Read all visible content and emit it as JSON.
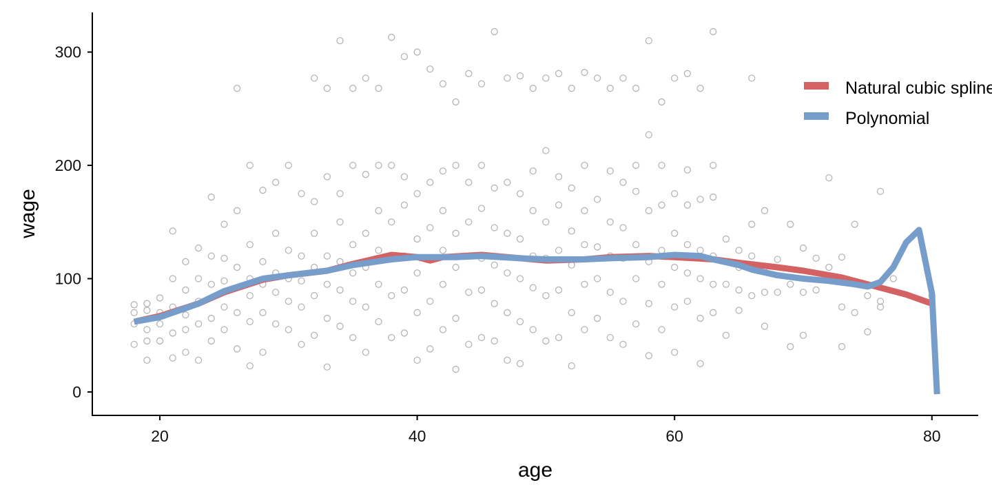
{
  "chart_data": {
    "type": "scatter",
    "title": "",
    "xlabel": "age",
    "ylabel": "wage",
    "xlim": [
      14.75,
      83.6
    ],
    "ylim": [
      -20.7,
      335
    ],
    "xticks": [
      20,
      40,
      60,
      80
    ],
    "yticks": [
      0,
      100,
      200,
      300
    ],
    "grid": false,
    "legend_position": "top-right",
    "colors": {
      "points": "#a8a8a8",
      "spline": "#d46262",
      "polynomial": "#779ecb",
      "axis": "#000000"
    },
    "points": [
      [
        26,
        268
      ],
      [
        32,
        277
      ],
      [
        33,
        268
      ],
      [
        34,
        310
      ],
      [
        35,
        268
      ],
      [
        36,
        277
      ],
      [
        37,
        268
      ],
      [
        38,
        313
      ],
      [
        39,
        296
      ],
      [
        40,
        300
      ],
      [
        41,
        285
      ],
      [
        42,
        272
      ],
      [
        43,
        256
      ],
      [
        44,
        281
      ],
      [
        45,
        272
      ],
      [
        46,
        318
      ],
      [
        47,
        277
      ],
      [
        48,
        279
      ],
      [
        49,
        268
      ],
      [
        50,
        277
      ],
      [
        51,
        281
      ],
      [
        52,
        268
      ],
      [
        53,
        282
      ],
      [
        54,
        277
      ],
      [
        55,
        268
      ],
      [
        56,
        277
      ],
      [
        57,
        268
      ],
      [
        58,
        310
      ],
      [
        59,
        256
      ],
      [
        60,
        277
      ],
      [
        61,
        281
      ],
      [
        62,
        268
      ],
      [
        63,
        318
      ],
      [
        66,
        277
      ],
      [
        18,
        42
      ],
      [
        18,
        60
      ],
      [
        18,
        70
      ],
      [
        18,
        77
      ],
      [
        19,
        28
      ],
      [
        19,
        45
      ],
      [
        19,
        55
      ],
      [
        19,
        72
      ],
      [
        19,
        78
      ],
      [
        20,
        45
      ],
      [
        20,
        60
      ],
      [
        20,
        70
      ],
      [
        20,
        83
      ],
      [
        21,
        30
      ],
      [
        21,
        52
      ],
      [
        21,
        75
      ],
      [
        21,
        100
      ],
      [
        21,
        142
      ],
      [
        22,
        35
      ],
      [
        22,
        55
      ],
      [
        22,
        68
      ],
      [
        22,
        90
      ],
      [
        22,
        115
      ],
      [
        23,
        28
      ],
      [
        23,
        60
      ],
      [
        23,
        80
      ],
      [
        23,
        100
      ],
      [
        23,
        127
      ],
      [
        24,
        45
      ],
      [
        24,
        65
      ],
      [
        24,
        95
      ],
      [
        24,
        120
      ],
      [
        24,
        172
      ],
      [
        25,
        55
      ],
      [
        25,
        75
      ],
      [
        25,
        98
      ],
      [
        25,
        118
      ],
      [
        25,
        148
      ],
      [
        26,
        38
      ],
      [
        26,
        70
      ],
      [
        26,
        92
      ],
      [
        26,
        110
      ],
      [
        26,
        160
      ],
      [
        27,
        23
      ],
      [
        27,
        62
      ],
      [
        27,
        85
      ],
      [
        27,
        100
      ],
      [
        27,
        130
      ],
      [
        27,
        200
      ],
      [
        28,
        35
      ],
      [
        28,
        70
      ],
      [
        28,
        95
      ],
      [
        28,
        115
      ],
      [
        28,
        178
      ],
      [
        29,
        60
      ],
      [
        29,
        88
      ],
      [
        29,
        105
      ],
      [
        29,
        140
      ],
      [
        29,
        185
      ],
      [
        30,
        55
      ],
      [
        30,
        80
      ],
      [
        30,
        100
      ],
      [
        30,
        125
      ],
      [
        30,
        200
      ],
      [
        31,
        42
      ],
      [
        31,
        75
      ],
      [
        31,
        98
      ],
      [
        31,
        120
      ],
      [
        31,
        175
      ],
      [
        32,
        50
      ],
      [
        32,
        85
      ],
      [
        32,
        110
      ],
      [
        32,
        140
      ],
      [
        32,
        168
      ],
      [
        33,
        22
      ],
      [
        33,
        65
      ],
      [
        33,
        95
      ],
      [
        33,
        120
      ],
      [
        33,
        190
      ],
      [
        34,
        58
      ],
      [
        34,
        90
      ],
      [
        34,
        115
      ],
      [
        34,
        150
      ],
      [
        34,
        175
      ],
      [
        35,
        48
      ],
      [
        35,
        80
      ],
      [
        35,
        105
      ],
      [
        35,
        130
      ],
      [
        35,
        200
      ],
      [
        36,
        35
      ],
      [
        36,
        75
      ],
      [
        36,
        110
      ],
      [
        36,
        140
      ],
      [
        36,
        192
      ],
      [
        37,
        62
      ],
      [
        37,
        95
      ],
      [
        37,
        125
      ],
      [
        37,
        160
      ],
      [
        37,
        200
      ],
      [
        38,
        48
      ],
      [
        38,
        85
      ],
      [
        38,
        118
      ],
      [
        38,
        150
      ],
      [
        38,
        200
      ],
      [
        39,
        52
      ],
      [
        39,
        90
      ],
      [
        39,
        120
      ],
      [
        39,
        165
      ],
      [
        39,
        190
      ],
      [
        40,
        28
      ],
      [
        40,
        70
      ],
      [
        40,
        105
      ],
      [
        40,
        135
      ],
      [
        40,
        175
      ],
      [
        41,
        38
      ],
      [
        41,
        80
      ],
      [
        41,
        118
      ],
      [
        41,
        145
      ],
      [
        41,
        185
      ],
      [
        42,
        55
      ],
      [
        42,
        95
      ],
      [
        42,
        125
      ],
      [
        42,
        160
      ],
      [
        42,
        195
      ],
      [
        43,
        20
      ],
      [
        43,
        65
      ],
      [
        43,
        110
      ],
      [
        43,
        140
      ],
      [
        43,
        200
      ],
      [
        44,
        42
      ],
      [
        44,
        88
      ],
      [
        44,
        120
      ],
      [
        44,
        150
      ],
      [
        44,
        185
      ],
      [
        45,
        48
      ],
      [
        45,
        90
      ],
      [
        45,
        118
      ],
      [
        45,
        162
      ],
      [
        45,
        200
      ],
      [
        46,
        45
      ],
      [
        46,
        78
      ],
      [
        46,
        112
      ],
      [
        46,
        145
      ],
      [
        46,
        180
      ],
      [
        47,
        28
      ],
      [
        47,
        70
      ],
      [
        47,
        105
      ],
      [
        47,
        140
      ],
      [
        47,
        185
      ],
      [
        48,
        25
      ],
      [
        48,
        62
      ],
      [
        48,
        100
      ],
      [
        48,
        135
      ],
      [
        48,
        175
      ],
      [
        49,
        55
      ],
      [
        49,
        92
      ],
      [
        49,
        120
      ],
      [
        49,
        160
      ],
      [
        49,
        195
      ],
      [
        50,
        45
      ],
      [
        50,
        85
      ],
      [
        50,
        118
      ],
      [
        50,
        150
      ],
      [
        50,
        213
      ],
      [
        51,
        48
      ],
      [
        51,
        90
      ],
      [
        51,
        125
      ],
      [
        51,
        165
      ],
      [
        51,
        190
      ],
      [
        52,
        23
      ],
      [
        52,
        70
      ],
      [
        52,
        112
      ],
      [
        52,
        142
      ],
      [
        52,
        180
      ],
      [
        53,
        55
      ],
      [
        53,
        95
      ],
      [
        53,
        130
      ],
      [
        53,
        160
      ],
      [
        53,
        200
      ],
      [
        54,
        65
      ],
      [
        54,
        100
      ],
      [
        54,
        128
      ],
      [
        54,
        170
      ],
      [
        55,
        48
      ],
      [
        55,
        88
      ],
      [
        55,
        120
      ],
      [
        55,
        150
      ],
      [
        55,
        195
      ],
      [
        56,
        42
      ],
      [
        56,
        80
      ],
      [
        56,
        118
      ],
      [
        56,
        145
      ],
      [
        56,
        185
      ],
      [
        57,
        60
      ],
      [
        57,
        100
      ],
      [
        57,
        130
      ],
      [
        57,
        177
      ],
      [
        57,
        200
      ],
      [
        58,
        32
      ],
      [
        58,
        78
      ],
      [
        58,
        115
      ],
      [
        58,
        160
      ],
      [
        58,
        227
      ],
      [
        59,
        55
      ],
      [
        59,
        95
      ],
      [
        59,
        125
      ],
      [
        59,
        165
      ],
      [
        59,
        200
      ],
      [
        60,
        35
      ],
      [
        60,
        75
      ],
      [
        60,
        110
      ],
      [
        60,
        140
      ],
      [
        60,
        175
      ],
      [
        61,
        80
      ],
      [
        61,
        105
      ],
      [
        61,
        130
      ],
      [
        61,
        165
      ],
      [
        61,
        196
      ],
      [
        62,
        25
      ],
      [
        62,
        65
      ],
      [
        62,
        100
      ],
      [
        62,
        125
      ],
      [
        62,
        170
      ],
      [
        63,
        70
      ],
      [
        63,
        95
      ],
      [
        63,
        120
      ],
      [
        63,
        172
      ],
      [
        63,
        200
      ],
      [
        64,
        50
      ],
      [
        64,
        95
      ],
      [
        64,
        115
      ],
      [
        64,
        135
      ],
      [
        65,
        72
      ],
      [
        65,
        90
      ],
      [
        65,
        110
      ],
      [
        65,
        125
      ],
      [
        66,
        85
      ],
      [
        66,
        120
      ],
      [
        66,
        148
      ],
      [
        67,
        58
      ],
      [
        67,
        88
      ],
      [
        67,
        110
      ],
      [
        67,
        160
      ],
      [
        68,
        88
      ],
      [
        68,
        117
      ],
      [
        69,
        40
      ],
      [
        69,
        95
      ],
      [
        69,
        148
      ],
      [
        70,
        50
      ],
      [
        70,
        88
      ],
      [
        70,
        127
      ],
      [
        71,
        90
      ],
      [
        71,
        118
      ],
      [
        72,
        110
      ],
      [
        72,
        189
      ],
      [
        73,
        40
      ],
      [
        73,
        75
      ],
      [
        73,
        119
      ],
      [
        74,
        70
      ],
      [
        74,
        148
      ],
      [
        75,
        53
      ],
      [
        75,
        85
      ],
      [
        76,
        75
      ],
      [
        76,
        80
      ],
      [
        76,
        177
      ],
      [
        77,
        100
      ],
      [
        80,
        85
      ]
    ],
    "series": [
      {
        "name": "Natural cubic spline",
        "x": [
          18,
          20,
          23,
          25,
          28,
          30,
          33,
          35,
          38,
          40,
          41,
          42,
          45,
          48,
          50,
          53,
          55,
          58,
          60,
          63,
          65,
          68,
          70,
          73,
          75,
          78,
          80
        ],
        "y": [
          62,
          67,
          78,
          88,
          99,
          103,
          107,
          113,
          121,
          119,
          116,
          119,
          121,
          118,
          116,
          117,
          119,
          120,
          119,
          117,
          114,
          110,
          107,
          101,
          95,
          86,
          78
        ]
      },
      {
        "name": "Polynomial",
        "x": [
          18,
          20,
          23,
          25,
          28,
          30,
          33,
          35,
          38,
          40,
          43,
          45,
          48,
          50,
          53,
          55,
          58,
          60,
          62,
          63,
          65,
          66,
          68,
          70,
          72,
          74,
          75,
          76,
          77,
          78,
          79,
          80,
          80.4
        ],
        "y": [
          62,
          66,
          78,
          89,
          100,
          103,
          107,
          112,
          117,
          119,
          119,
          120,
          118,
          117,
          117,
          118,
          119,
          121,
          120,
          117,
          112,
          108,
          103,
          100,
          98,
          95,
          93,
          97,
          110,
          132,
          143,
          87,
          -2
        ]
      }
    ]
  }
}
